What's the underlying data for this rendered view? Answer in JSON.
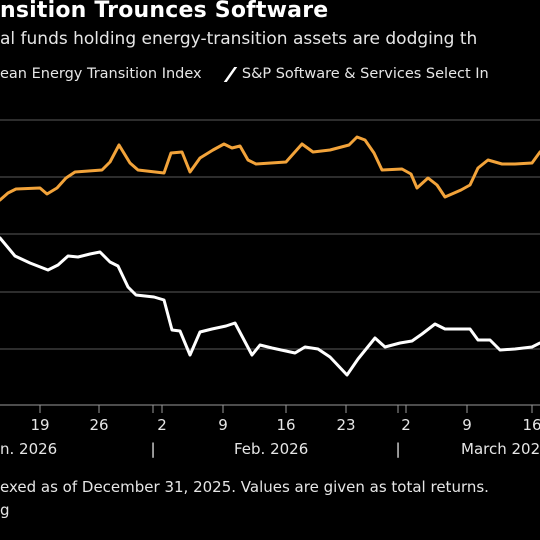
{
  "header": {
    "title": "nsition Trounces Software",
    "subtitle": "al funds holding energy-transition assets are dodging th"
  },
  "legend": {
    "entries": [
      {
        "label": "ean Energy Transition Index",
        "color": "#f2a33a"
      },
      {
        "label": "S&P Software & Services Select In",
        "color": "#ffffff"
      }
    ]
  },
  "footer": {
    "note": "exed as of December 31, 2025. Values are given as total returns.",
    "source": "g"
  },
  "chart_data": {
    "type": "line",
    "x_tick_labels": [
      "19",
      "26",
      "2",
      "9",
      "16",
      "23",
      "2",
      "9",
      "16"
    ],
    "month_labels": [
      "n. 2026",
      "Feb. 2026",
      "March 202"
    ],
    "series": [
      {
        "name": "ean Energy Transition Index",
        "color": "#f2a33a",
        "points": [
          [
            0,
            200
          ],
          [
            8,
            193
          ],
          [
            16,
            189
          ],
          [
            40,
            188
          ],
          [
            47,
            194
          ],
          [
            57,
            188
          ],
          [
            66,
            178
          ],
          [
            75,
            172
          ],
          [
            102,
            170
          ],
          [
            110,
            162
          ],
          [
            119,
            145
          ],
          [
            130,
            163
          ],
          [
            138,
            170
          ],
          [
            164,
            173
          ],
          [
            171,
            153
          ],
          [
            182,
            152
          ],
          [
            190,
            172
          ],
          [
            200,
            158
          ],
          [
            213,
            150
          ],
          [
            224,
            144
          ],
          [
            232,
            148
          ],
          [
            240,
            146
          ],
          [
            248,
            160
          ],
          [
            256,
            164
          ],
          [
            286,
            162
          ],
          [
            302,
            144
          ],
          [
            313,
            152
          ],
          [
            330,
            150
          ],
          [
            349,
            145
          ],
          [
            357,
            137
          ],
          [
            365,
            140
          ],
          [
            374,
            153
          ],
          [
            382,
            170
          ],
          [
            402,
            169
          ],
          [
            411,
            174
          ],
          [
            417,
            188
          ],
          [
            428,
            178
          ],
          [
            437,
            185
          ],
          [
            445,
            197
          ],
          [
            461,
            190
          ],
          [
            470,
            185
          ],
          [
            478,
            168
          ],
          [
            488,
            160
          ],
          [
            502,
            164
          ],
          [
            515,
            164
          ],
          [
            532,
            163
          ],
          [
            540,
            152
          ]
        ]
      },
      {
        "name": "S&P Software & Services Select In",
        "color": "#ffffff",
        "points": [
          [
            0,
            238
          ],
          [
            15,
            256
          ],
          [
            30,
            263
          ],
          [
            48,
            270
          ],
          [
            58,
            265
          ],
          [
            68,
            256
          ],
          [
            78,
            257
          ],
          [
            90,
            254
          ],
          [
            100,
            252
          ],
          [
            110,
            262
          ],
          [
            118,
            266
          ],
          [
            128,
            287
          ],
          [
            136,
            295
          ],
          [
            154,
            297
          ],
          [
            164,
            300
          ],
          [
            172,
            330
          ],
          [
            180,
            331
          ],
          [
            190,
            355
          ],
          [
            200,
            332
          ],
          [
            212,
            329
          ],
          [
            226,
            326
          ],
          [
            235,
            323
          ],
          [
            252,
            355
          ],
          [
            260,
            345
          ],
          [
            272,
            348
          ],
          [
            295,
            353
          ],
          [
            305,
            347
          ],
          [
            318,
            349
          ],
          [
            330,
            357
          ],
          [
            347,
            375
          ],
          [
            358,
            359
          ],
          [
            375,
            338
          ],
          [
            385,
            347
          ],
          [
            400,
            343
          ],
          [
            412,
            341
          ],
          [
            422,
            334
          ],
          [
            435,
            324
          ],
          [
            445,
            329
          ],
          [
            470,
            329
          ],
          [
            478,
            340
          ],
          [
            490,
            340
          ],
          [
            500,
            350
          ],
          [
            515,
            349
          ],
          [
            532,
            347
          ],
          [
            540,
            343
          ]
        ]
      }
    ]
  }
}
